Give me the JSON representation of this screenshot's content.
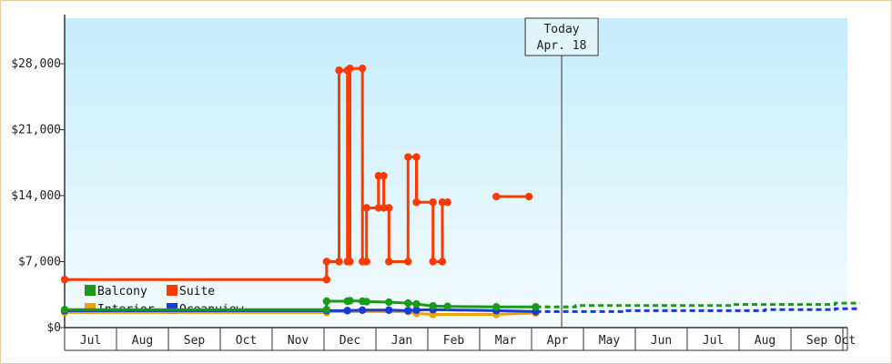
{
  "chart_data": {
    "type": "line",
    "today": {
      "title": "Today",
      "date": "Apr. 18",
      "x": 9.58
    },
    "y_ticks": [
      {
        "value": 0,
        "label": "$0"
      },
      {
        "value": 7000,
        "label": "$7,000"
      },
      {
        "value": 14000,
        "label": "$14,000"
      },
      {
        "value": 21000,
        "label": "$21,000"
      },
      {
        "value": 28000,
        "label": "$28,000"
      }
    ],
    "ylim": [
      0,
      28000
    ],
    "xlim": [
      0,
      15.33
    ],
    "months": [
      "Jul",
      "Aug",
      "Sep",
      "Oct",
      "Nov",
      "Dec",
      "Jan",
      "Feb",
      "Mar",
      "Apr",
      "May",
      "Jun",
      "Jul",
      "Aug",
      "Sep",
      "Oct"
    ],
    "series": [
      {
        "name": "Suite",
        "color": "#ff3a00",
        "points": [
          [
            0.0,
            5100
          ],
          [
            5.05,
            5100
          ],
          [
            5.05,
            7000
          ],
          [
            5.29,
            7000
          ],
          [
            5.29,
            27300
          ],
          [
            5.45,
            27300
          ],
          [
            5.45,
            7000
          ],
          [
            5.5,
            7000
          ],
          [
            5.5,
            27500
          ],
          [
            5.74,
            27500
          ],
          [
            5.74,
            7000
          ],
          [
            5.82,
            7000
          ],
          [
            5.82,
            12700
          ],
          [
            6.05,
            12700
          ],
          [
            6.05,
            16100
          ],
          [
            6.15,
            16100
          ],
          [
            6.15,
            12700
          ],
          [
            6.25,
            12700
          ],
          [
            6.25,
            7000
          ],
          [
            6.62,
            7000
          ],
          [
            6.62,
            18100
          ],
          [
            6.78,
            18100
          ],
          [
            6.78,
            13300
          ],
          [
            7.1,
            13300
          ],
          [
            7.1,
            7000
          ],
          [
            7.28,
            7000
          ],
          [
            7.28,
            13300
          ],
          [
            7.38,
            13300
          ]
        ],
        "segments2": [
          [
            [
              8.32,
              13900
            ],
            [
              8.95,
              13900
            ]
          ]
        ]
      },
      {
        "name": "Balcony",
        "color": "#1a9a1a",
        "points": [
          [
            0.0,
            1900
          ],
          [
            5.05,
            1900
          ],
          [
            5.05,
            2800
          ],
          [
            5.45,
            2800
          ],
          [
            5.5,
            2850
          ],
          [
            5.74,
            2800
          ],
          [
            5.82,
            2750
          ],
          [
            6.25,
            2700
          ],
          [
            6.62,
            2600
          ],
          [
            6.78,
            2500
          ],
          [
            7.1,
            2300
          ],
          [
            7.38,
            2250
          ],
          [
            8.32,
            2200
          ],
          [
            9.08,
            2200
          ]
        ],
        "forecast": [
          [
            9.08,
            2200
          ],
          [
            9.85,
            2200
          ],
          [
            9.85,
            2350
          ],
          [
            12.85,
            2350
          ],
          [
            12.85,
            2450
          ],
          [
            14.85,
            2450
          ],
          [
            14.85,
            2600
          ],
          [
            15.33,
            2600
          ]
        ]
      },
      {
        "name": "Interior",
        "color": "#f0a000",
        "points": [
          [
            0.0,
            1600
          ],
          [
            5.05,
            1600
          ],
          [
            5.05,
            1700
          ],
          [
            6.62,
            1700
          ],
          [
            6.78,
            1500
          ],
          [
            7.1,
            1400
          ],
          [
            8.32,
            1400
          ],
          [
            9.08,
            1550
          ]
        ],
        "forecast": []
      },
      {
        "name": "Oceanview",
        "color": "#1a3ad8",
        "points": [
          [
            0.0,
            1800
          ],
          [
            5.05,
            1800
          ],
          [
            5.45,
            1800
          ],
          [
            5.74,
            1850
          ],
          [
            6.25,
            1850
          ],
          [
            6.62,
            1800
          ],
          [
            6.78,
            1850
          ],
          [
            7.1,
            1900
          ],
          [
            8.32,
            1800
          ],
          [
            9.08,
            1700
          ]
        ],
        "forecast": [
          [
            9.08,
            1700
          ],
          [
            10.8,
            1700
          ],
          [
            10.8,
            1800
          ],
          [
            13.5,
            1800
          ],
          [
            13.5,
            1900
          ],
          [
            14.85,
            1900
          ],
          [
            14.85,
            2000
          ],
          [
            15.33,
            2000
          ]
        ]
      }
    ],
    "legend": [
      {
        "name": "Balcony",
        "color": "#1a9a1a"
      },
      {
        "name": "Suite",
        "color": "#ff3a00"
      },
      {
        "name": "Interior",
        "color": "#f0a000"
      },
      {
        "name": "Oceanview",
        "color": "#1a3ad8"
      }
    ]
  }
}
